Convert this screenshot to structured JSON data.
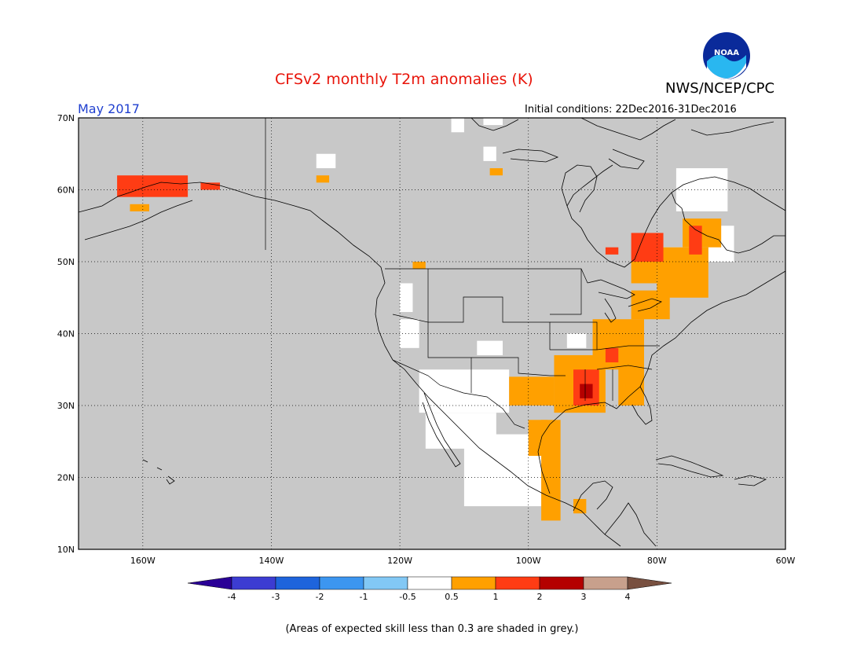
{
  "header": {
    "title": "CFSv2 monthly T2m anomalies (K)",
    "agency": "NWS/NCEP/CPC",
    "month": "May 2017",
    "initial_conditions": "Initial conditions: 22Dec2016-31Dec2016",
    "logo_text": "NOAA"
  },
  "map": {
    "lon_range": [
      -170,
      -60
    ],
    "lat_range": [
      10,
      70
    ],
    "lat_labels": [
      "70N",
      "60N",
      "50N",
      "40N",
      "30N",
      "20N",
      "10N"
    ],
    "lon_labels": [
      "160W",
      "140W",
      "120W",
      "100W",
      "80W",
      "60W"
    ],
    "colors": {
      "ocean_land_low_skill": "#c8c8c8",
      "neutral": "#ffffff",
      "warm_0_5_1": "#ffa000",
      "warm_1_2": "#ff3c14",
      "warm_2_3": "#b40000"
    }
  },
  "colorbar": {
    "labels": [
      "-4",
      "-3",
      "-2",
      "-1",
      "-0.5",
      "0.5",
      "1",
      "2",
      "3",
      "4"
    ],
    "colors": [
      "#2a0096",
      "#3c3cd2",
      "#1e64dc",
      "#3c96f0",
      "#82c8f5",
      "#ffffff",
      "#ffa000",
      "#ff3c14",
      "#b40000",
      "#c8a08c",
      "#785040"
    ]
  },
  "footnote": "(Areas of expected skill less than 0.3 are shaded in grey.)"
}
